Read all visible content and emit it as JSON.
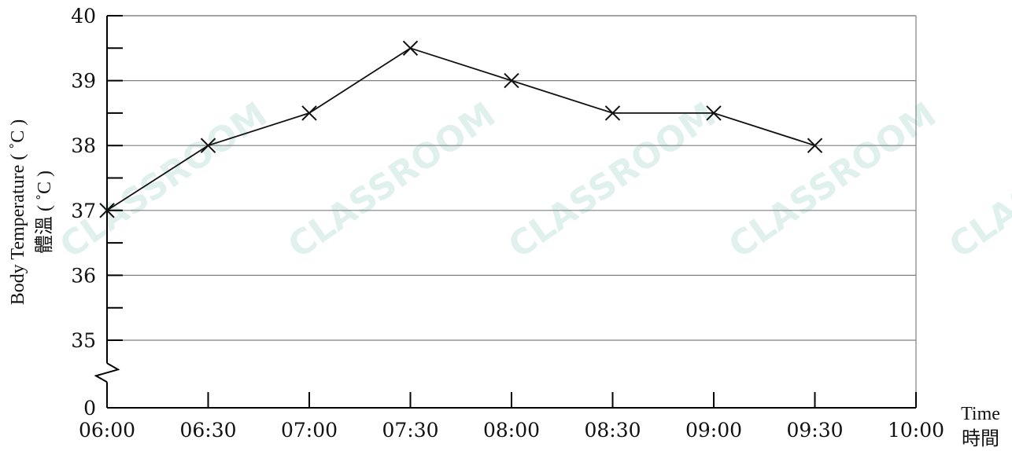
{
  "chart_data": {
    "type": "line",
    "x": [
      "06:00",
      "06:30",
      "07:00",
      "07:30",
      "08:00",
      "08:30",
      "09:00",
      "09:30"
    ],
    "series": [
      {
        "values": [
          37,
          38,
          38.5,
          39.5,
          39,
          38.5,
          38.5,
          38
        ]
      }
    ],
    "x_ticks": [
      "06:00",
      "06:30",
      "07:00",
      "07:30",
      "08:00",
      "08:30",
      "09:00",
      "09:30",
      "10:00"
    ],
    "y_ticks": [
      "0",
      "35",
      "36",
      "37",
      "38",
      "39",
      "40"
    ],
    "ylim": [
      34.5,
      40
    ],
    "y_axis_break": true,
    "y_label_en": "Body Temperature ( ˚C )",
    "y_label_zh": "體溫 ( ˚C )",
    "x_label_en": "Time",
    "x_label_zh": "時間",
    "marker": "x",
    "grid": "horizontal",
    "watermark": "CLASSROOM",
    "colors": {
      "line": "#111111",
      "grid": "#808080",
      "axis": "#000000",
      "watermark": "#a8d8cc"
    }
  }
}
